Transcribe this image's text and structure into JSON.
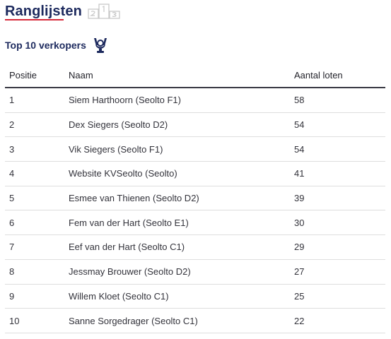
{
  "header": {
    "title": "Ranglijsten",
    "icon": "podium-icon"
  },
  "section": {
    "title": "Top 10 verkopers",
    "icon": "trophy-icon"
  },
  "table": {
    "columns": [
      "Positie",
      "Naam",
      "Aantal loten"
    ],
    "rows": [
      {
        "pos": "1",
        "name": "Siem Harthoorn (Seolto F1)",
        "count": "58"
      },
      {
        "pos": "2",
        "name": "Dex Siegers (Seolto D2)",
        "count": "54"
      },
      {
        "pos": "3",
        "name": "Vik Siegers (Seolto F1)",
        "count": "54"
      },
      {
        "pos": "4",
        "name": "Website KVSeolto (Seolto)",
        "count": "41"
      },
      {
        "pos": "5",
        "name": "Esmee van Thienen (Seolto D2)",
        "count": "39"
      },
      {
        "pos": "6",
        "name": "Fem van der Hart (Seolto E1)",
        "count": "30"
      },
      {
        "pos": "7",
        "name": "Eef van der Hart (Seolto C1)",
        "count": "29"
      },
      {
        "pos": "8",
        "name": "Jessmay Brouwer (Seolto D2)",
        "count": "27"
      },
      {
        "pos": "9",
        "name": "Willem Kloet (Seolto C1)",
        "count": "25"
      },
      {
        "pos": "10",
        "name": "Sanne Sorgedrager (Seolto C1)",
        "count": "22"
      }
    ]
  },
  "colors": {
    "title": "#1d2a5e",
    "underline": "#d6283a",
    "icon_gray": "#c8c8c8"
  }
}
